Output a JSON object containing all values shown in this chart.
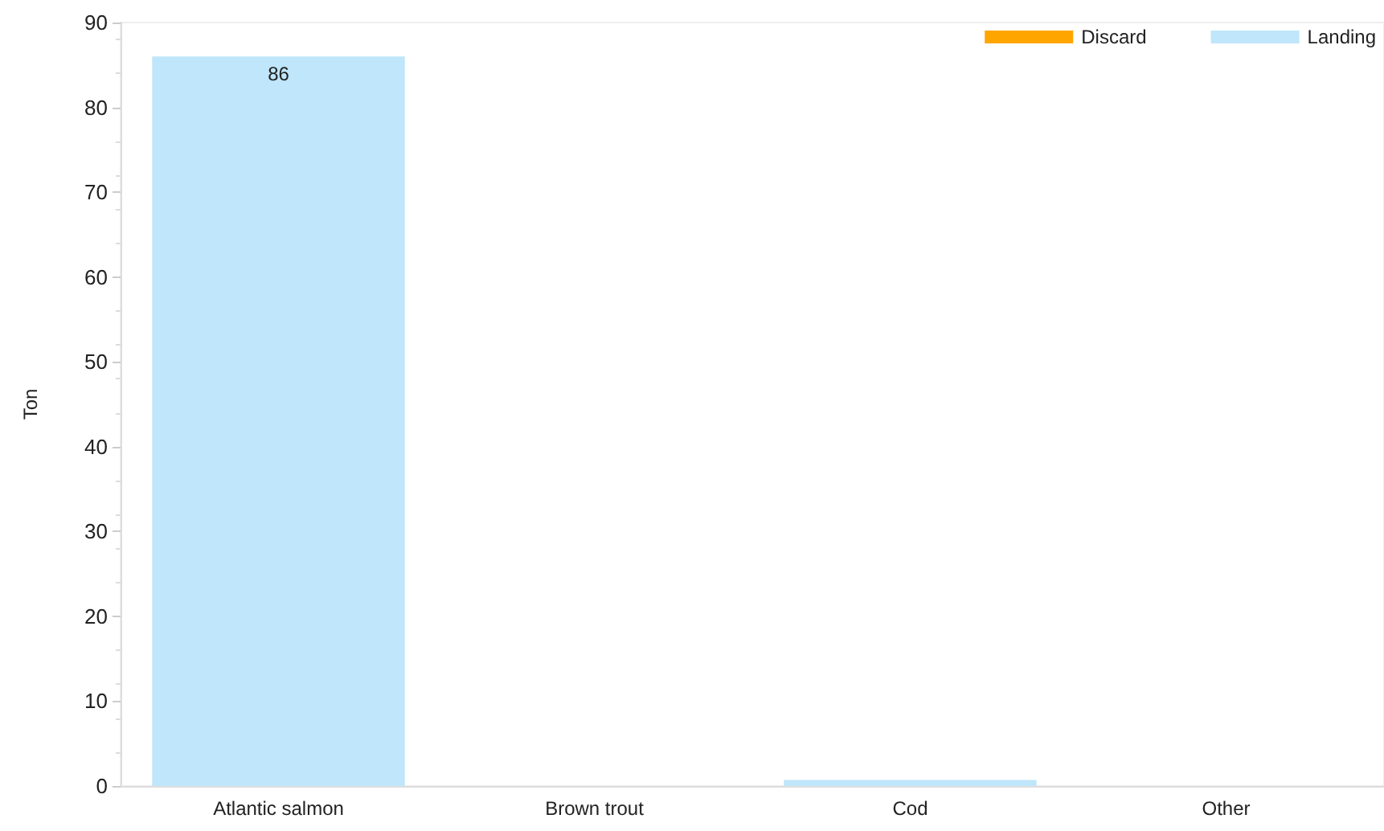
{
  "chart_data": {
    "type": "bar",
    "ylabel": "Ton",
    "categories": [
      "Atlantic salmon",
      "Brown trout",
      "Cod",
      "Other"
    ],
    "stacked": true,
    "legend": "top right",
    "grid": false,
    "ylim": [
      0,
      90
    ],
    "yticks": [
      0,
      10,
      20,
      30,
      40,
      50,
      60,
      70,
      80,
      90
    ],
    "series": [
      {
        "name": "Discard",
        "color": "#ffa500",
        "values": [
          0,
          0,
          0,
          0
        ]
      },
      {
        "name": "Landing",
        "color": "#bfe6fa",
        "values": [
          86,
          0,
          0.7,
          0
        ],
        "value_labels": [
          "86",
          null,
          null,
          null
        ]
      }
    ]
  }
}
